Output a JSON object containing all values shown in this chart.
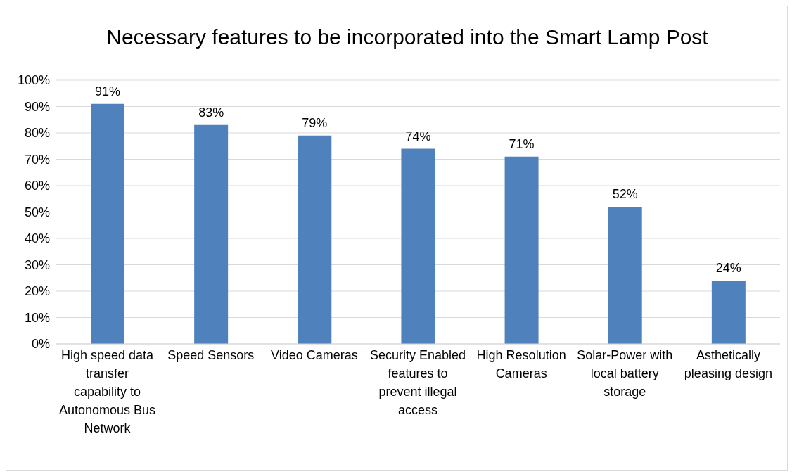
{
  "chart_data": {
    "type": "bar",
    "title": "Necessary features to be incorporated into the Smart Lamp Post",
    "categories": [
      "High speed data transfer capability to Autonomous Bus Network",
      "Speed Sensors",
      "Video Cameras",
      "Security Enabled features to prevent  illegal access",
      "High Resolution Cameras",
      "Solar-Power with local battery storage",
      "Asthetically pleasing design"
    ],
    "values": [
      91,
      83,
      79,
      74,
      71,
      52,
      24
    ],
    "value_labels": [
      "91%",
      "83%",
      "79%",
      "74%",
      "71%",
      "52%",
      "24%"
    ],
    "color": "#4f81bd",
    "ylim": [
      0,
      100
    ],
    "yticks": [
      {
        "value": 0,
        "label": "0%"
      },
      {
        "value": 10,
        "label": "10%"
      },
      {
        "value": 20,
        "label": "20%"
      },
      {
        "value": 30,
        "label": "30%"
      },
      {
        "value": 40,
        "label": "40%"
      },
      {
        "value": 50,
        "label": "50%"
      },
      {
        "value": 60,
        "label": "60%"
      },
      {
        "value": 70,
        "label": "70%"
      },
      {
        "value": 80,
        "label": "80%"
      },
      {
        "value": 90,
        "label": "90%"
      },
      {
        "value": 100,
        "label": "100%"
      }
    ],
    "grid": "y",
    "legend": false
  }
}
